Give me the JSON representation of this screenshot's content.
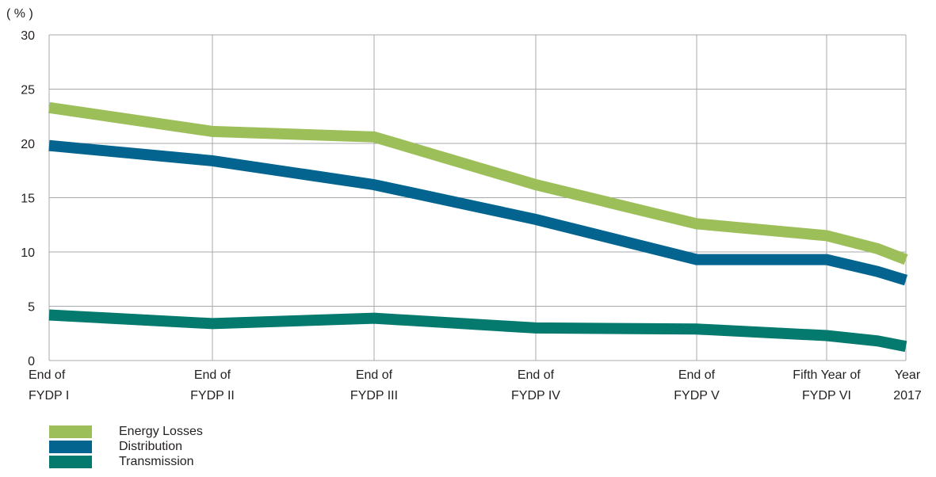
{
  "chart_data": {
    "type": "line",
    "unit_label": "( % )",
    "categories": [
      [
        "End of",
        "FYDP I"
      ],
      [
        "End of",
        "FYDP II"
      ],
      [
        "End of",
        "FYDP III"
      ],
      [
        "End of",
        "FYDP IV"
      ],
      [
        "End of",
        "FYDP V"
      ],
      [
        "Fifth Year of",
        "FYDP VI"
      ],
      [
        "Year",
        "2017"
      ]
    ],
    "x": [
      0,
      1,
      2,
      3,
      4,
      4.8,
      5.25,
      5.5
    ],
    "ylim": [
      0,
      30
    ],
    "yticks": [
      0,
      5,
      10,
      15,
      20,
      25,
      30
    ],
    "grid": true,
    "legend_position": "bottom-left",
    "series": [
      {
        "name": "Energy Losses",
        "color": "#9dbf5a",
        "values": [
          23.3,
          21.1,
          20.6,
          16.2,
          12.6,
          11.5,
          10.3,
          9.3
        ]
      },
      {
        "name": "Distribution",
        "color": "#02648f",
        "values": [
          19.8,
          18.4,
          16.2,
          13.0,
          9.3,
          9.3,
          8.2,
          7.4
        ]
      },
      {
        "name": "Transmission",
        "color": "#04796d",
        "values": [
          4.2,
          3.4,
          3.9,
          3.0,
          2.9,
          2.3,
          1.8,
          1.3
        ]
      }
    ]
  }
}
